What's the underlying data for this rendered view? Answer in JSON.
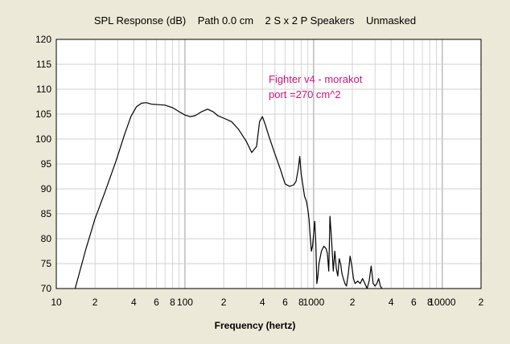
{
  "chart_data": {
    "type": "line",
    "title": "SPL Response (dB)    Path 0.0 cm    2 S x 2 P Speakers    Unmasked",
    "xlabel": "Frequency (hertz)",
    "ylabel": "",
    "xscale": "log",
    "xlim": [
      10,
      20000
    ],
    "ylim": [
      70,
      120
    ],
    "grid": true,
    "y_ticks": [
      "70",
      "75",
      "80",
      "85",
      "90",
      "95",
      "100",
      "105",
      "110",
      "115",
      "120"
    ],
    "x_ticks": [
      {
        "value": 10,
        "label": "10"
      },
      {
        "value": 20,
        "label": "2"
      },
      {
        "value": 40,
        "label": "4"
      },
      {
        "value": 60,
        "label": "6"
      },
      {
        "value": 80,
        "label": "8"
      },
      {
        "value": 100,
        "label": "100"
      },
      {
        "value": 200,
        "label": "2"
      },
      {
        "value": 400,
        "label": "4"
      },
      {
        "value": 600,
        "label": "6"
      },
      {
        "value": 800,
        "label": "8"
      },
      {
        "value": 1000,
        "label": "1000"
      },
      {
        "value": 2000,
        "label": "2"
      },
      {
        "value": 4000,
        "label": "4"
      },
      {
        "value": 6000,
        "label": "6"
      },
      {
        "value": 8000,
        "label": "8"
      },
      {
        "value": 10000,
        "label": "10000"
      },
      {
        "value": 20000,
        "label": "2"
      }
    ],
    "annotations": [
      "Fighter v4 - morakot",
      "port =270 cm^2"
    ],
    "line_color": "#000000",
    "annotation_color": "#d4127a",
    "series": [
      {
        "x": [
          14,
          17,
          20,
          24,
          29,
          34,
          38,
          42,
          46,
          50,
          55,
          62,
          70,
          80,
          90,
          100,
          110,
          120,
          135,
          150,
          165,
          180,
          200,
          230,
          260,
          300,
          330,
          360,
          380,
          400,
          420,
          450,
          500,
          550,
          600,
          650,
          700,
          730,
          760,
          780,
          800,
          850,
          880,
          900,
          920,
          940,
          960,
          980,
          1000,
          1020,
          1040,
          1060,
          1080,
          1100,
          1150,
          1200,
          1250,
          1280,
          1310,
          1340,
          1380,
          1420,
          1460,
          1500,
          1540,
          1580,
          1620,
          1660,
          1700,
          1750,
          1800,
          1860,
          1920,
          1980,
          2040,
          2100,
          2200,
          2300,
          2400,
          2500,
          2600,
          2700,
          2800,
          2900,
          3000,
          3100,
          3200,
          3300,
          3400
        ],
        "y": [
          70,
          78,
          84,
          89.5,
          95.5,
          101,
          104.5,
          106.5,
          107.2,
          107.3,
          107,
          106.9,
          106.8,
          106.3,
          105.5,
          104.8,
          104.5,
          104.7,
          105.5,
          106,
          105.5,
          104.7,
          104.2,
          103.5,
          102,
          99.5,
          97.3,
          98.5,
          103.5,
          104.5,
          103,
          100.5,
          97,
          94,
          91,
          90.5,
          90.8,
          91.5,
          94,
          96.5,
          93,
          88.5,
          87.5,
          86,
          84,
          80.5,
          77.5,
          78.5,
          81,
          83.5,
          79,
          71,
          72.5,
          75,
          77.5,
          78.5,
          78,
          77,
          73.5,
          84.5,
          79.5,
          73.5,
          77.5,
          74,
          72.5,
          76,
          75,
          73,
          72,
          71,
          70.5,
          73,
          76.5,
          74.5,
          72,
          71,
          71.5,
          71,
          72,
          71,
          70,
          71.5,
          74.5,
          71,
          70.5,
          71,
          72,
          70.5,
          70
        ]
      }
    ]
  }
}
